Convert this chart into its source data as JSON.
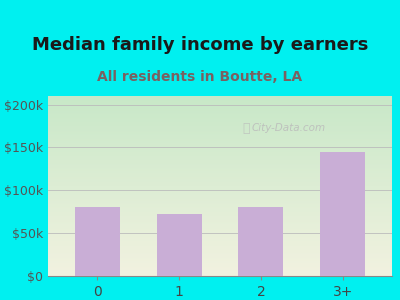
{
  "title": "Median family income by earners",
  "subtitle": "All residents in Boutte, LA",
  "categories": [
    "0",
    "1",
    "2",
    "3+"
  ],
  "values": [
    80000,
    72000,
    80000,
    145000
  ],
  "bar_color": "#c9aed6",
  "title_color": "#1a1a1a",
  "subtitle_color": "#7a6060",
  "bg_color": "#00f0f0",
  "plot_bg_top": "#c8e8c8",
  "plot_bg_bottom": "#f2f2e0",
  "yticks": [
    0,
    50000,
    100000,
    150000,
    200000
  ],
  "ytick_labels": [
    "$0",
    "$50k",
    "$100k",
    "$150k",
    "$200k"
  ],
  "ylim": [
    0,
    210000
  ],
  "watermark": "City-Data.com",
  "title_fontsize": 13,
  "subtitle_fontsize": 10,
  "tick_fontsize": 9,
  "xtick_fontsize": 10
}
